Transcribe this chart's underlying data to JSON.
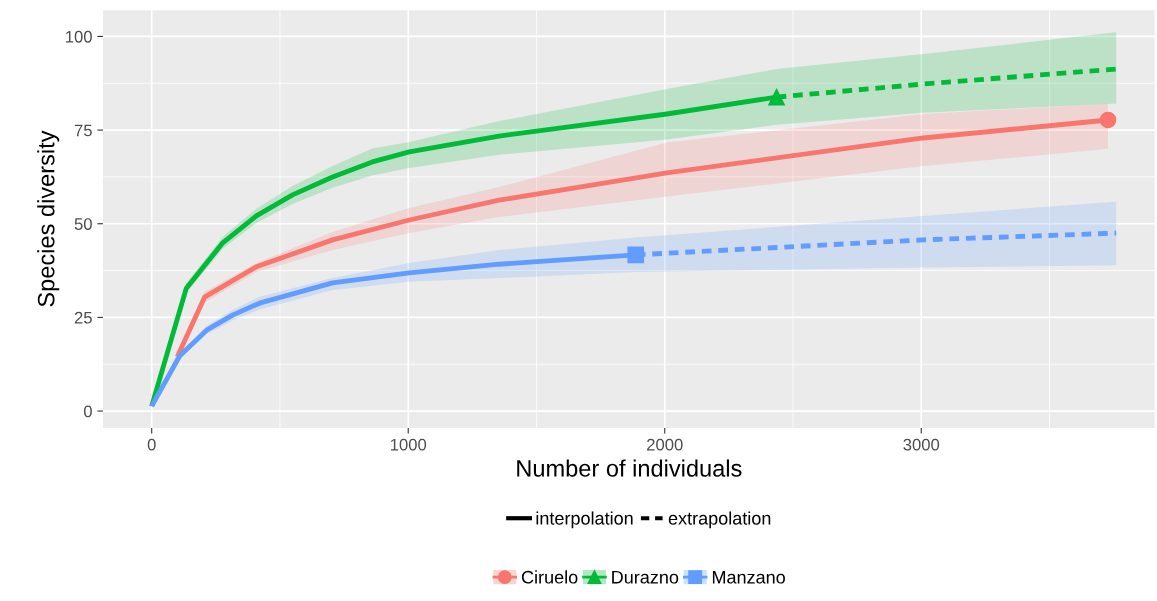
{
  "chart_data": {
    "type": "line",
    "xlabel": "Number of individuals",
    "ylabel": "Species diversity",
    "xlim": [
      -190,
      3910
    ],
    "ylim": [
      -4.5,
      107
    ],
    "xticks": [
      0,
      1000,
      2000,
      3000
    ],
    "yticks": [
      0,
      25,
      50,
      75,
      100
    ],
    "grid": true,
    "legend": "bottom",
    "annotations": [
      "interpolation",
      "extrapolation"
    ],
    "series": [
      {
        "name": "Ciruelo",
        "color": "#f8766d",
        "line_style": "solid",
        "x": [
          0,
          100,
          206,
          408,
          705,
          1004,
          1354,
          2008,
          3008,
          3728
        ],
        "values": [
          null,
          14.5,
          30.4,
          38.5,
          45.7,
          51.0,
          56.3,
          63.6,
          72.9,
          77.7
        ],
        "lower": [
          1.3,
          13.5,
          29,
          37.1,
          43.0,
          47.5,
          51.8,
          57.3,
          65.4,
          70
        ],
        "upper": [
          1.3,
          15.5,
          31.8,
          39.5,
          47.8,
          54.2,
          59.8,
          71.7,
          79.3,
          82
        ]
      },
      {
        "type": "scatter",
        "color": "#f8766d",
        "marker": "circle",
        "x": [
          3728
        ],
        "values": [
          77.7
        ]
      },
      {
        "name": "Durazno",
        "color": "#00ba38",
        "line_style": "solid",
        "x": [
          0,
          135,
          277,
          408,
          549,
          705,
          860,
          1004,
          1354,
          2008,
          2436
        ],
        "values": [
          1.3,
          32.8,
          44.9,
          52.1,
          57.7,
          62.5,
          66.5,
          69.2,
          73.4,
          79.3,
          83.8
        ],
        "lower": [
          1.3,
          31.5,
          43.3,
          50.2,
          55.3,
          59.6,
          62.9,
          64.9,
          68.4,
          72.5,
          76.4
        ],
        "upper": [
          1.3,
          34.1,
          46.5,
          54.0,
          60.1,
          65.4,
          70.1,
          71.8,
          77.4,
          86.0,
          91.3
        ]
      },
      {
        "type": "scatter",
        "color": "#00ba38",
        "marker": "triangle",
        "x": [
          2436
        ],
        "values": [
          83.8
        ]
      },
      {
        "color": "#00ba38",
        "line_style": "dashed",
        "x": [
          2436,
          3008,
          3760
        ],
        "values": [
          83.8,
          87.3,
          91.3
        ],
        "lower": [
          76.4,
          79.6,
          82.1
        ],
        "upper": [
          91.3,
          95.3,
          101.1
        ]
      },
      {
        "name": "Manzano",
        "color": "#619cff",
        "line_style": "solid",
        "x": [
          0,
          109,
          214,
          315,
          420,
          705,
          1004,
          1354,
          1887
        ],
        "values": [
          1.3,
          14.7,
          21.6,
          25.6,
          28.8,
          34.2,
          36.9,
          39.2,
          41.7
        ],
        "lower": [
          1.3,
          14.0,
          20.5,
          24.2,
          27.1,
          32.3,
          34.5,
          35.5,
          37.1
        ],
        "upper": [
          1.3,
          15.4,
          22.7,
          27.0,
          30.5,
          35.5,
          39.5,
          43.0,
          46.3
        ]
      },
      {
        "type": "scatter",
        "color": "#619cff",
        "marker": "square",
        "x": [
          1887
        ],
        "values": [
          41.7
        ]
      },
      {
        "color": "#619cff",
        "line_style": "dashed",
        "x": [
          1887,
          3008,
          3760
        ],
        "values": [
          41.7,
          45.7,
          47.5
        ],
        "lower": [
          37.1,
          38.3,
          38.9
        ],
        "upper": [
          46.3,
          52.1,
          55.9
        ]
      }
    ]
  }
}
